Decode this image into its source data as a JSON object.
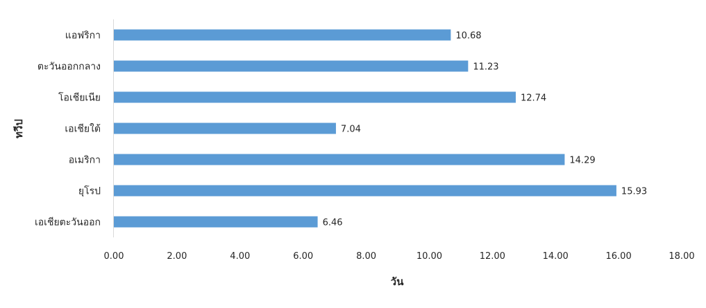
{
  "chart_data": {
    "type": "bar",
    "orientation": "horizontal",
    "categories": [
      "แอฟริกา",
      "ตะวันออกกลาง",
      "โอเชียเนีย",
      "เอเชียใต้",
      "อเมริกา",
      "ยุโรป",
      "เอเชียตะวันออก"
    ],
    "values": [
      10.68,
      11.23,
      12.74,
      7.04,
      14.29,
      15.93,
      6.46
    ],
    "value_labels": [
      "10.68",
      "11.23",
      "12.74",
      "7.04",
      "14.29",
      "15.93",
      "6.46"
    ],
    "xlabel": "วัน",
    "ylabel": "ทวีป",
    "xlim": [
      0,
      18
    ],
    "x_ticks": [
      "0.00",
      "2.00",
      "4.00",
      "6.00",
      "8.00",
      "10.00",
      "12.00",
      "14.00",
      "16.00",
      "18.00"
    ],
    "grid": false,
    "legend": "none",
    "bar_color": "#5B9BD5"
  }
}
